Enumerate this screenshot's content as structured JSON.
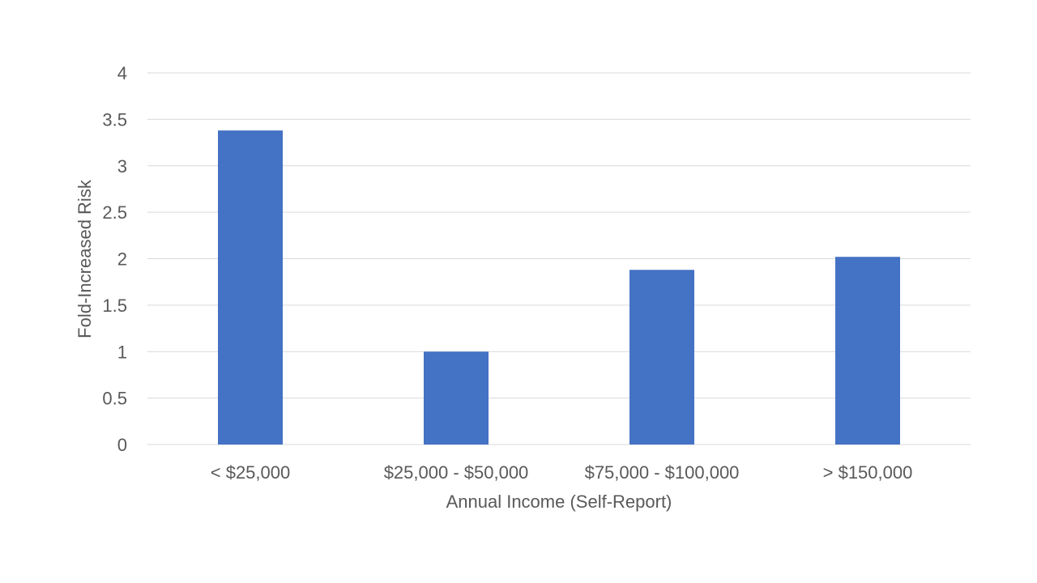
{
  "chart_data": {
    "type": "bar",
    "title": "",
    "xlabel": "Annual Income (Self-Report)",
    "ylabel": "Fold-Increased Risk",
    "categories": [
      "< $25,000",
      "$25,000 - $50,000",
      "$75,000 - $100,000",
      "> $150,000"
    ],
    "values": [
      3.38,
      1.0,
      1.88,
      2.02
    ],
    "ylim": [
      0,
      4
    ],
    "yticks": [
      "0",
      "0.5",
      "1",
      "1.5",
      "2",
      "2.5",
      "3",
      "3.5",
      "4"
    ],
    "grid": true,
    "legend": "none",
    "bar_color": "#4472C4",
    "grid_color": "#D9D9D9",
    "text_color": "#595959"
  }
}
